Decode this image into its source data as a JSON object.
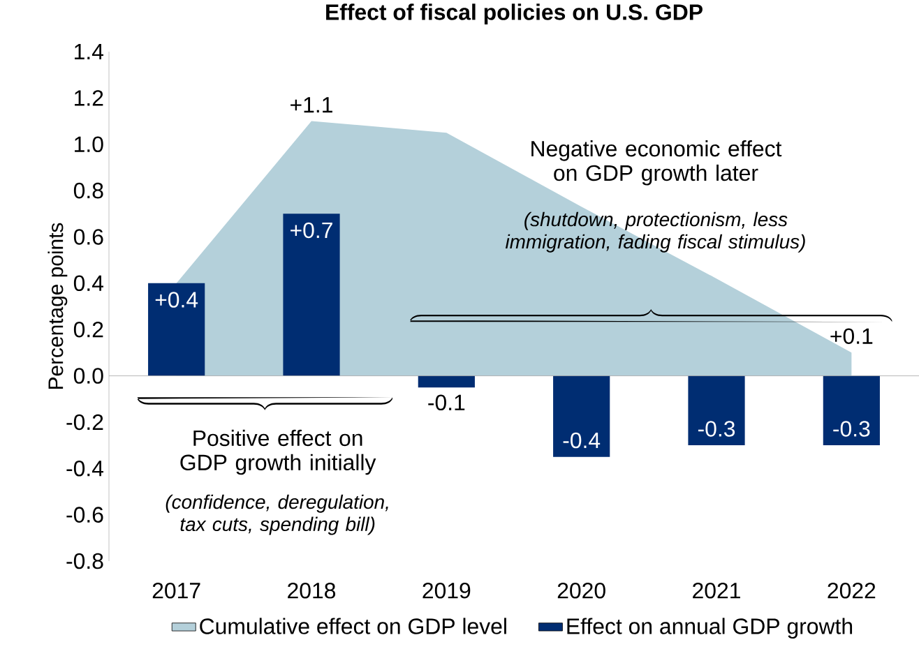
{
  "chart_data": {
    "type": "bar",
    "title": "Effect of fiscal policies on U.S. GDP",
    "ylabel": "Percentage points",
    "categories": [
      "2017",
      "2018",
      "2019",
      "2020",
      "2021",
      "2022"
    ],
    "series": [
      {
        "name": "Cumulative effect on GDP level",
        "type": "area",
        "color": "#b4d0da",
        "values": [
          0.4,
          1.1,
          1.05,
          0.73,
          0.42,
          0.1
        ],
        "value_labels": [
          null,
          "+1.1",
          null,
          null,
          null,
          "+0.1"
        ]
      },
      {
        "name": "Effect on annual GDP growth",
        "color": "#002d72",
        "values": [
          0.4,
          0.7,
          -0.05,
          -0.35,
          -0.3,
          -0.3
        ],
        "value_labels": [
          "+0.4",
          "+0.7",
          "-0.1",
          "-0.4",
          "-0.3",
          "-0.3"
        ]
      }
    ],
    "ylim": [
      -0.8,
      1.4
    ],
    "yticks": [
      -0.8,
      -0.6,
      -0.4,
      -0.2,
      {
        "value": 0,
        "label": "0.0"
      },
      0.2,
      0.4,
      0.6,
      0.8,
      {
        "value": 1,
        "label": "1.0"
      },
      1.2,
      1.4
    ],
    "legend": "bottom",
    "annotations": [
      "Positive effect on GDP growth initially",
      "(confidence, deregulation, tax cuts, spending bill)",
      "Negative economic effect on GDP growth later",
      "(shutdown, protectionism, less immigration, fading fiscal stimulus)"
    ]
  }
}
